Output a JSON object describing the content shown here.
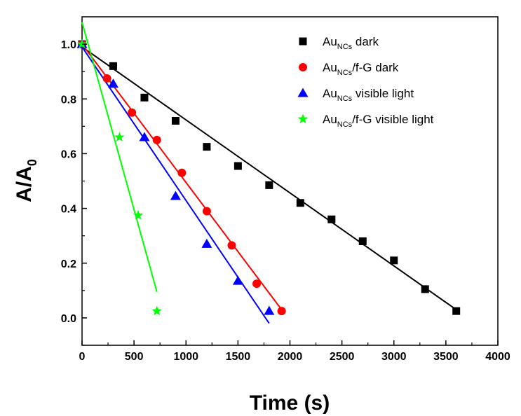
{
  "chart_data": {
    "type": "scatter",
    "xlabel": "Time (s)",
    "ylabel": {
      "main": "A/A",
      "sub": "0"
    },
    "xlim": [
      0,
      4000
    ],
    "ylim": [
      -0.1,
      1.1
    ],
    "xticks": [
      0,
      500,
      1000,
      1500,
      2000,
      2500,
      3000,
      3500,
      4000
    ],
    "yticks": [
      0.0,
      0.2,
      0.4,
      0.6,
      0.8,
      1.0
    ],
    "xtick_labels": [
      "0",
      "500",
      "1000",
      "1500",
      "2000",
      "2500",
      "3000",
      "3500",
      "4000"
    ],
    "ytick_labels": [
      "0.0",
      "0.2",
      "0.4",
      "0.6",
      "0.8",
      "1.0"
    ],
    "grid": false,
    "legend_position": "top-right",
    "series": [
      {
        "name": "Au_NCs dark",
        "legend_parts": [
          "Au",
          "NCs",
          " dark"
        ],
        "marker": "square",
        "color": "#000000",
        "x": [
          0,
          300,
          600,
          900,
          1200,
          1500,
          1800,
          2100,
          2400,
          2700,
          3000,
          3300,
          3600
        ],
        "y": [
          1.0,
          0.92,
          0.805,
          0.72,
          0.625,
          0.555,
          0.485,
          0.42,
          0.36,
          0.28,
          0.21,
          0.105,
          0.025
        ],
        "fit": {
          "x": [
            0,
            3600
          ],
          "y": [
            0.99,
            0.03
          ]
        }
      },
      {
        "name": "Au_NCs/f-G dark",
        "legend_parts": [
          "Au",
          "NCs",
          "/f-G dark"
        ],
        "marker": "circle",
        "color": "#ff0000",
        "x": [
          0,
          240,
          480,
          720,
          960,
          1200,
          1440,
          1680,
          1920
        ],
        "y": [
          1.0,
          0.875,
          0.75,
          0.65,
          0.53,
          0.39,
          0.265,
          0.125,
          0.025
        ],
        "fit": {
          "x": [
            0,
            1920
          ],
          "y": [
            1.0,
            0.03
          ]
        }
      },
      {
        "name": "Au_NCs visible light",
        "legend_parts": [
          "Au",
          "NCs",
          " visible light"
        ],
        "marker": "triangle",
        "color": "#0000ff",
        "x": [
          0,
          300,
          600,
          900,
          1200,
          1500,
          1800
        ],
        "y": [
          1.0,
          0.855,
          0.66,
          0.445,
          0.27,
          0.135,
          0.025
        ],
        "fit": {
          "x": [
            0,
            1800
          ],
          "y": [
            0.99,
            -0.02
          ]
        }
      },
      {
        "name": "Au_NCs/f-G visible light",
        "legend_parts": [
          "Au",
          "NCs",
          "/f-G visible light"
        ],
        "marker": "star",
        "color": "#00ff00",
        "x": [
          0,
          360,
          540,
          720
        ],
        "y": [
          1.0,
          0.66,
          0.375,
          0.025
        ],
        "fit": {
          "x": [
            0,
            720
          ],
          "y": [
            1.08,
            0.095
          ]
        }
      }
    ]
  }
}
